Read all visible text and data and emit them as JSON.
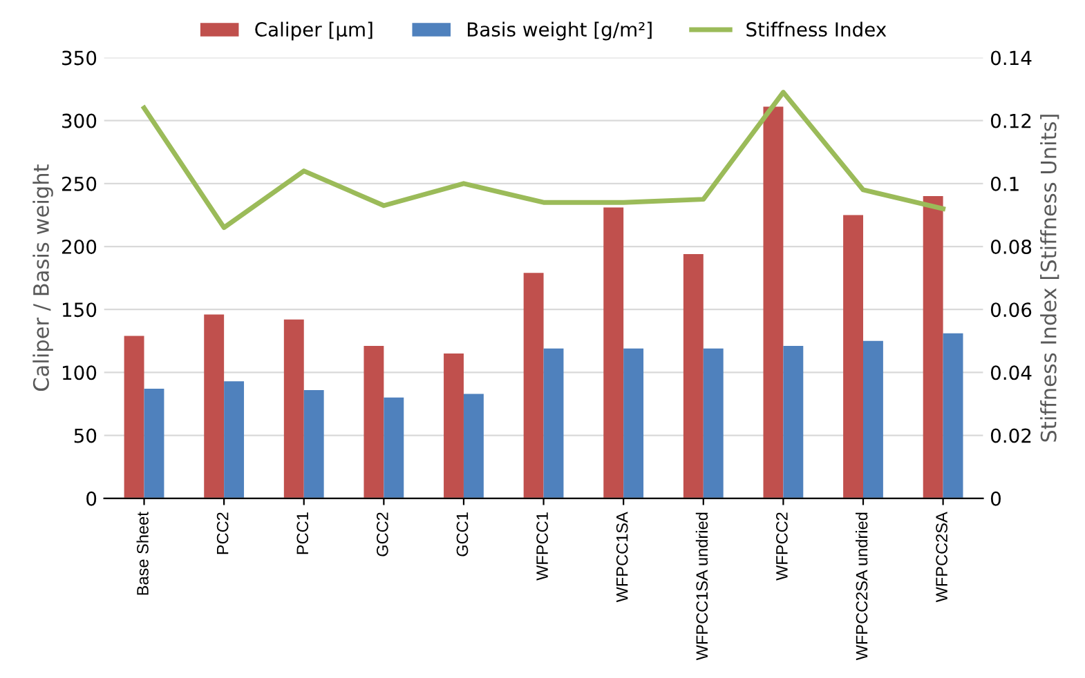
{
  "chart_data": {
    "type": "bar",
    "ylabel": "Caliper / Basis weight",
    "y2label": "Stiffness Index [Stiffness Units]",
    "categories": [
      "Base Sheet",
      "PCC2",
      "PCC1",
      "GCC2",
      "GCC1",
      "WFPCC1",
      "WFPCC1SA",
      "WFPCC1SA undried",
      "WFPCC2",
      "WFPCC2SA undried",
      "WFPCC2SA"
    ],
    "series": [
      {
        "name": "Caliper [µm]",
        "color": "#c0504d",
        "values": [
          129,
          146,
          142,
          121,
          115,
          179,
          231,
          194,
          311,
          225,
          240
        ]
      },
      {
        "name": "Basis weight [g/m²]",
        "color": "#4f81bd",
        "values": [
          87,
          93,
          86,
          80,
          83,
          119,
          119,
          119,
          121,
          125,
          131
        ]
      },
      {
        "name": "Stiffness Index",
        "type": "line",
        "axis": "y2",
        "color": "#9bbb59",
        "values": [
          0.124,
          0.086,
          0.104,
          0.093,
          0.1,
          0.094,
          0.094,
          0.095,
          0.129,
          0.098,
          0.092
        ]
      }
    ],
    "ylim": [
      0,
      350
    ],
    "yticks": [
      0,
      50,
      100,
      150,
      200,
      250,
      300,
      350
    ],
    "y2lim": [
      0,
      0.14
    ],
    "y2ticks": [
      0,
      0.02,
      0.04,
      0.06,
      0.08,
      0.1,
      0.12,
      0.14
    ],
    "grid": "y",
    "legend": "top",
    "marker": "none",
    "line_style": "solid"
  }
}
